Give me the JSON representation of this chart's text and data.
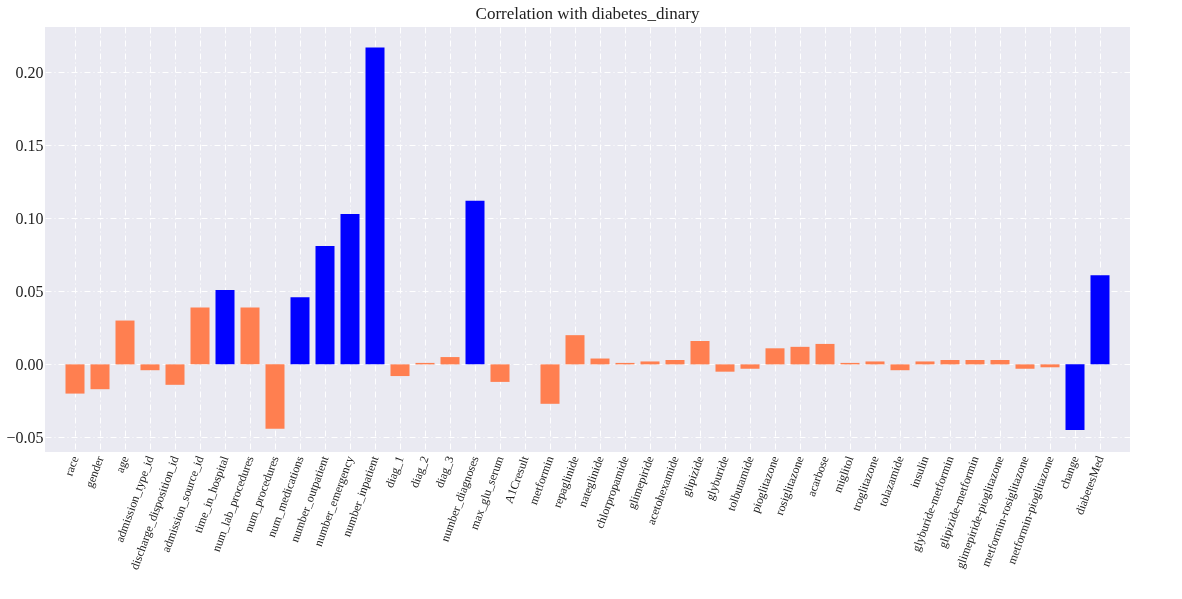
{
  "chart_data": {
    "type": "bar",
    "title": "Correlation with diabetes_dinary",
    "categories": [
      "race",
      "gender",
      "age",
      "admission_type_id",
      "discharge_disposition_id",
      "admission_source_id",
      "time_in_hospital",
      "num_lab_procedures",
      "num_procedures",
      "num_medications",
      "number_outpatient",
      "number_emergency",
      "number_inpatient",
      "diag_1",
      "diag_2",
      "diag_3",
      "number_diagnoses",
      "max_glu_serum",
      "A1Cresult",
      "metformin",
      "repaglinide",
      "nateglinide",
      "chlorpropamide",
      "glimepiride",
      "acetohexamide",
      "glipizide",
      "glyburide",
      "tolbutamide",
      "pioglitazone",
      "rosiglitazone",
      "acarbose",
      "miglitol",
      "troglitazone",
      "tolazamide",
      "insulin",
      "glyburide-metformin",
      "glipizide-metformin",
      "glimepiride-pioglitazone",
      "metformin-rosiglitazone",
      "metformin-pioglitazone",
      "change",
      "diabetesMed"
    ],
    "values": [
      -0.02,
      -0.017,
      0.03,
      -0.004,
      -0.014,
      0.039,
      0.051,
      0.039,
      -0.044,
      0.046,
      0.081,
      0.103,
      0.217,
      -0.008,
      0.001,
      0.005,
      0.112,
      -0.012,
      null,
      -0.027,
      0.02,
      0.004,
      0.001,
      0.002,
      0.003,
      0.016,
      -0.005,
      -0.003,
      0.011,
      0.012,
      0.014,
      0.001,
      0.002,
      -0.004,
      0.002,
      0.003,
      0.003,
      0.003,
      -0.003,
      -0.002,
      -0.045,
      0.061
    ],
    "colors": [
      "#ff7f50",
      "#ff7f50",
      "#ff7f50",
      "#ff7f50",
      "#ff7f50",
      "#ff7f50",
      "#0000ff",
      "#ff7f50",
      "#ff7f50",
      "#0000ff",
      "#0000ff",
      "#0000ff",
      "#0000ff",
      "#ff7f50",
      "#ff7f50",
      "#ff7f50",
      "#0000ff",
      "#ff7f50",
      "#ff7f50",
      "#ff7f50",
      "#ff7f50",
      "#ff7f50",
      "#ff7f50",
      "#ff7f50",
      "#ff7f50",
      "#ff7f50",
      "#ff7f50",
      "#ff7f50",
      "#ff7f50",
      "#ff7f50",
      "#ff7f50",
      "#ff7f50",
      "#ff7f50",
      "#ff7f50",
      "#ff7f50",
      "#ff7f50",
      "#ff7f50",
      "#ff7f50",
      "#ff7f50",
      "#ff7f50",
      "#0000ff",
      "#0000ff"
    ],
    "ylim": [
      -0.06,
      0.231
    ],
    "yticks": [
      {
        "value": -0.05,
        "label": "−0.05"
      },
      {
        "value": 0,
        "label": "0.00"
      },
      {
        "value": 0.05,
        "label": "0.05"
      },
      {
        "value": 0.1,
        "label": "0.10"
      },
      {
        "value": 0.15,
        "label": "0.15"
      },
      {
        "value": 0.2,
        "label": "0.20"
      }
    ],
    "grid": true
  }
}
